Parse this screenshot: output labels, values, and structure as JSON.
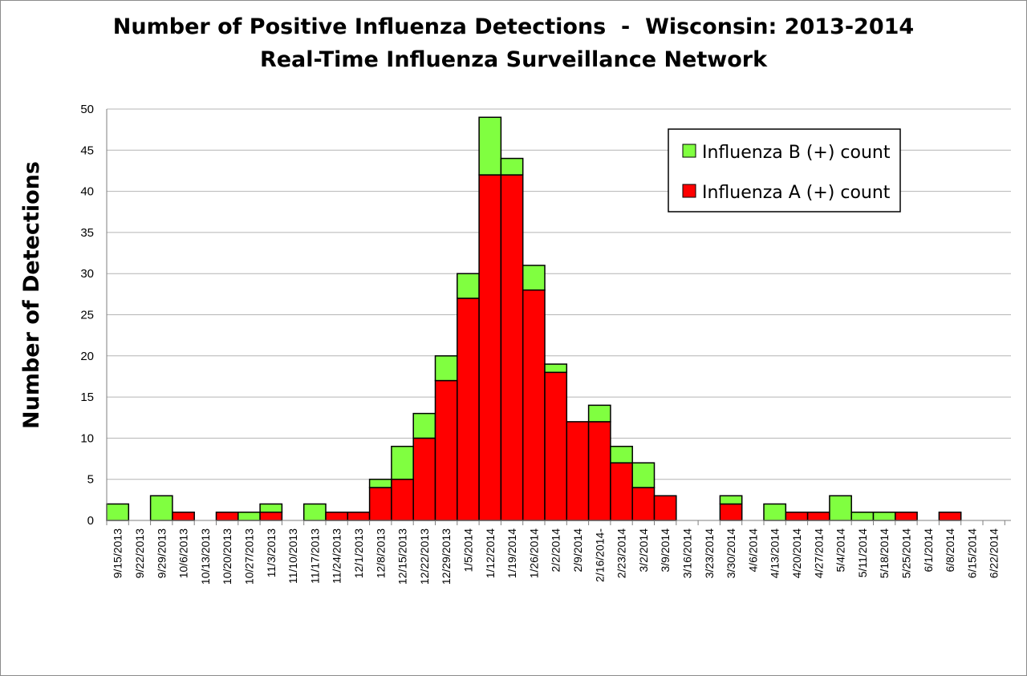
{
  "chart_data": {
    "type": "bar",
    "stacked": true,
    "title": "Number of Positive Influenza Detections  -  Wisconsin: 2013-2014",
    "subtitle": "Real-Time Influenza Surveillance Network",
    "xlabel": "",
    "ylabel": "Number of Detections",
    "ylim": [
      0,
      50
    ],
    "yticks": [
      "0",
      "5",
      "10",
      "15",
      "20",
      "25",
      "30",
      "35",
      "40",
      "45",
      "50"
    ],
    "grid": true,
    "legend_position": "top-right",
    "categories": [
      "9/15/2013",
      "9/22/2013",
      "9/29/2013",
      "10/6/2013",
      "10/13/2013",
      "10/20/2013",
      "10/27/2013",
      "11/3/2013",
      "11/10/2013",
      "11/17/2013",
      "11/24/2013",
      "12/1/2013",
      "12/8/2013",
      "12/15/2013",
      "12/22/2013",
      "12/29/2013",
      "1/5/2014",
      "1/12/2014",
      "1/19/2014",
      "1/26/2014",
      "2/2/2014",
      "2/9/2014",
      "2/16/2014-",
      "2/23/2014",
      "3/2/2014",
      "3/9/2014",
      "3/16/2014",
      "3/23/2014",
      "3/30/2014",
      "4/6/2014",
      "4/13/2014",
      "4/20/2014",
      "4/27/2014",
      "5/4/2014",
      "5/11/2014",
      "5/18/2014",
      "5/25/2014",
      "6/1/2014",
      "6/8/2014",
      "6/15/2014",
      "6/22/2014"
    ],
    "series": [
      {
        "name": "Influenza A (+) count",
        "color": "#ff0000",
        "values": [
          0,
          0,
          0,
          1,
          0,
          1,
          0,
          1,
          0,
          0,
          1,
          1,
          4,
          5,
          10,
          17,
          27,
          42,
          42,
          28,
          18,
          12,
          12,
          7,
          4,
          3,
          0,
          0,
          2,
          0,
          0,
          1,
          1,
          0,
          0,
          0,
          1,
          0,
          1,
          0,
          0
        ]
      },
      {
        "name": "Influenza B (+) count",
        "color": "#80ff40",
        "values": [
          2,
          0,
          3,
          0,
          0,
          0,
          1,
          1,
          0,
          2,
          0,
          0,
          1,
          4,
          3,
          3,
          3,
          7,
          2,
          3,
          1,
          0,
          2,
          2,
          3,
          0,
          0,
          0,
          1,
          0,
          2,
          0,
          0,
          3,
          1,
          1,
          0,
          0,
          0,
          0,
          0
        ]
      }
    ],
    "legend": [
      {
        "label": "Influenza B (+) count",
        "color": "#80ff40"
      },
      {
        "label": "Influenza A (+) count",
        "color": "#ff0000"
      }
    ]
  }
}
